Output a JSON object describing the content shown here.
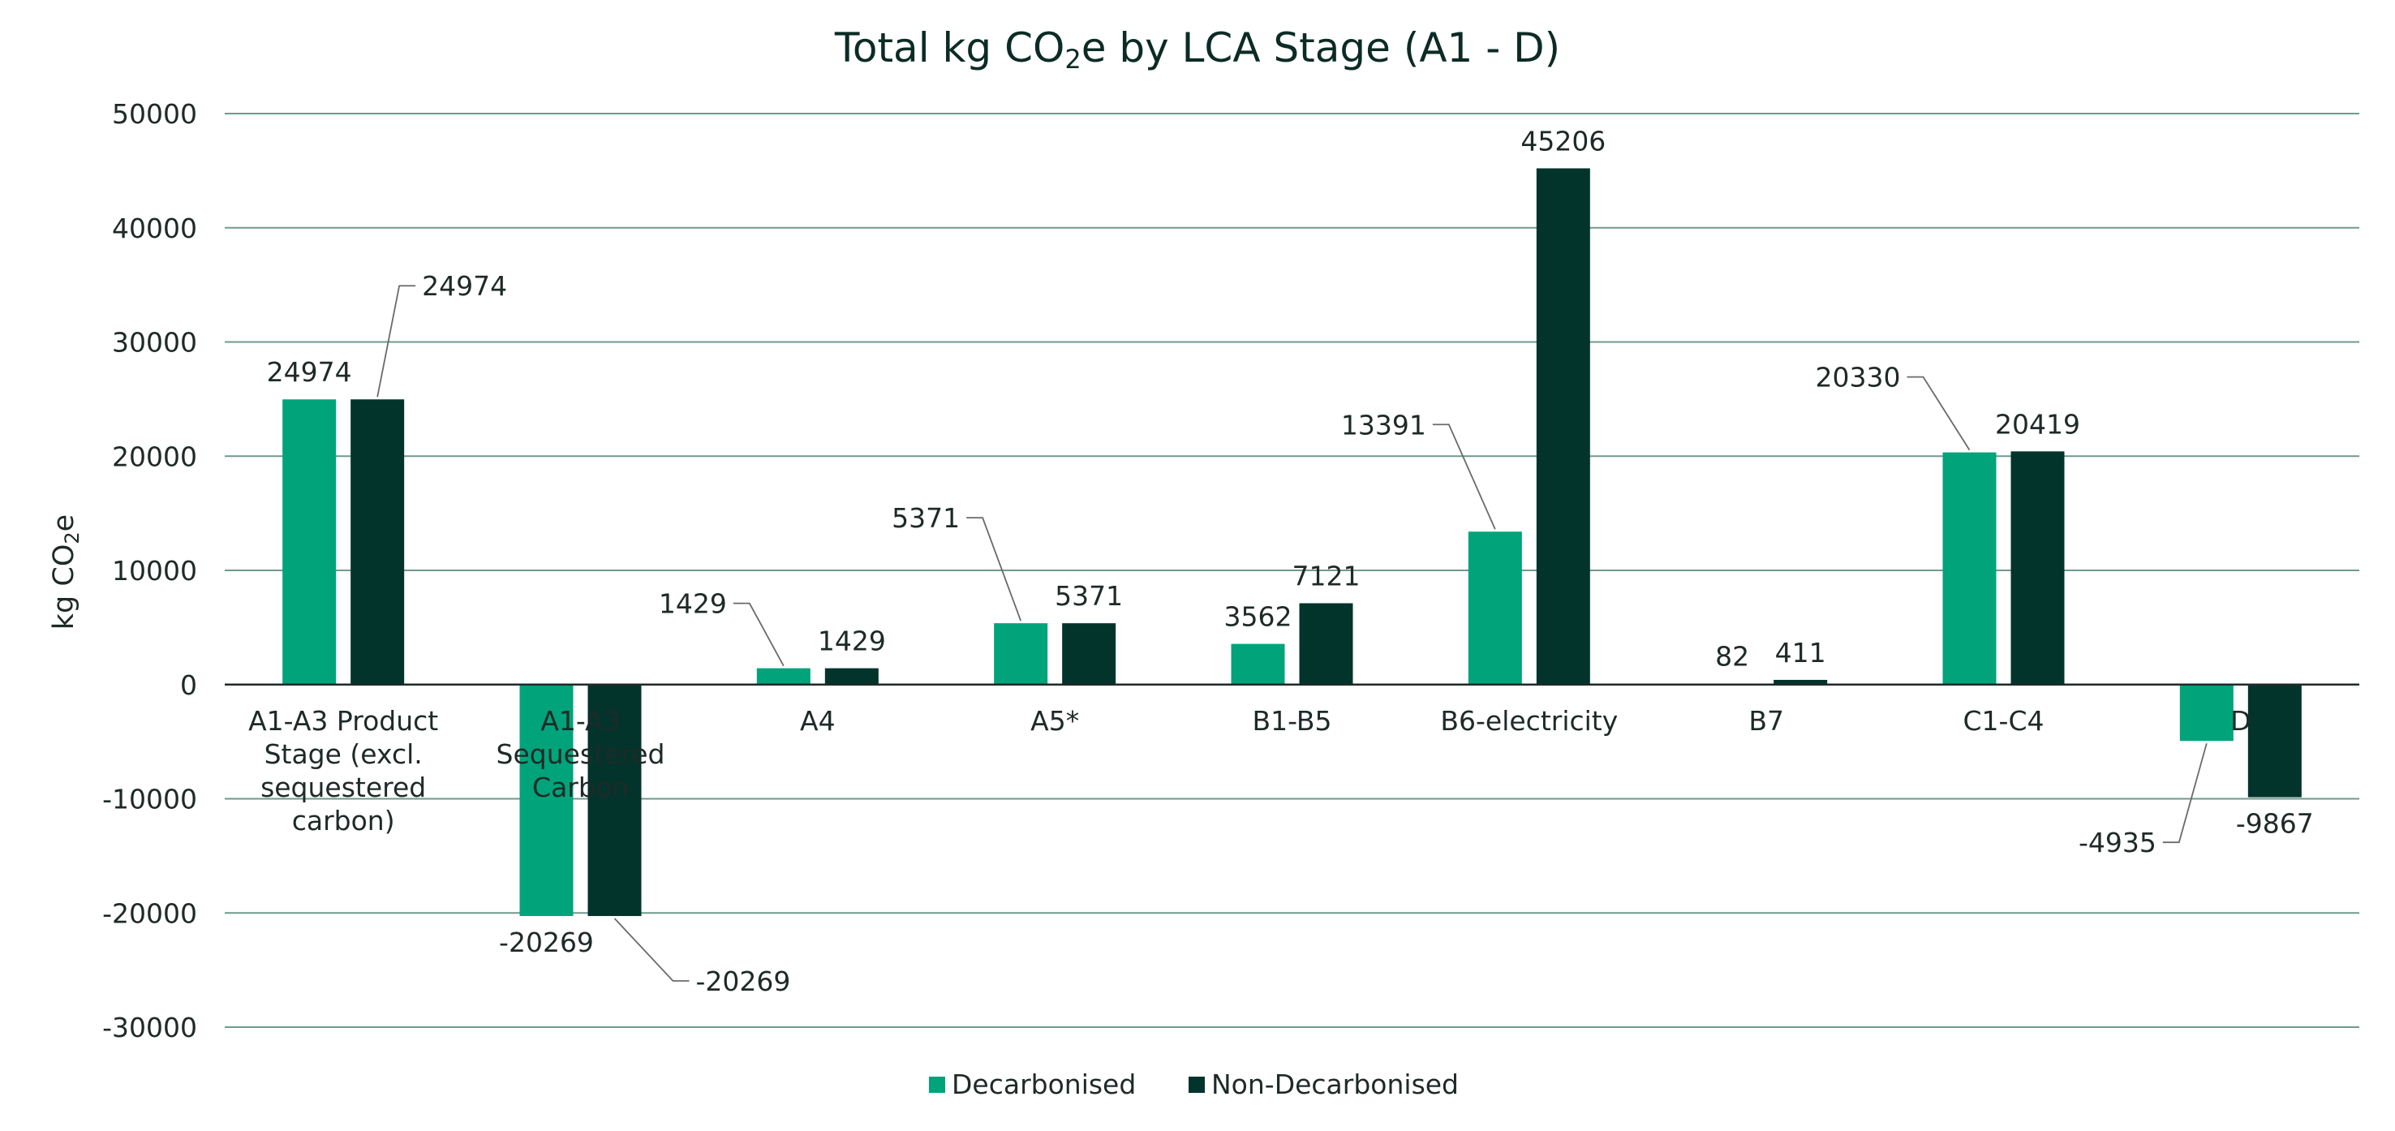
{
  "chart_data": {
    "type": "bar",
    "title_main": "Total kg CO",
    "title_sub": "2",
    "title_rest": "e by LCA Stage (A1 - D)",
    "ylabel_main": "kg CO",
    "ylabel_sub": "2",
    "ylabel_rest": "e",
    "ylim": [
      -30000,
      50000
    ],
    "yticks": [
      50000,
      40000,
      30000,
      20000,
      10000,
      0,
      -10000,
      -20000,
      -30000
    ],
    "grid": true,
    "legend_position": "bottom",
    "categories": [
      [
        "A1-A3 Product",
        "Stage (excl.",
        "sequestered",
        "carbon)"
      ],
      [
        "A1-A3",
        "Sequestered",
        "Carbon"
      ],
      [
        "A4"
      ],
      [
        "A5*"
      ],
      [
        "B1-B5"
      ],
      [
        "B6-electricity"
      ],
      [
        "B7"
      ],
      [
        "C1-C4"
      ],
      [
        "D"
      ]
    ],
    "series": [
      {
        "name": "Decarbonised",
        "color": "#00a37a",
        "values": [
          24974,
          -20269,
          1429,
          5371,
          3562,
          13391,
          82,
          20330,
          -4935
        ]
      },
      {
        "name": "Non-Decarbonised",
        "color": "#03342b",
        "values": [
          24974,
          -20269,
          1429,
          5371,
          7121,
          45206,
          411,
          20419,
          -9867
        ]
      }
    ]
  }
}
